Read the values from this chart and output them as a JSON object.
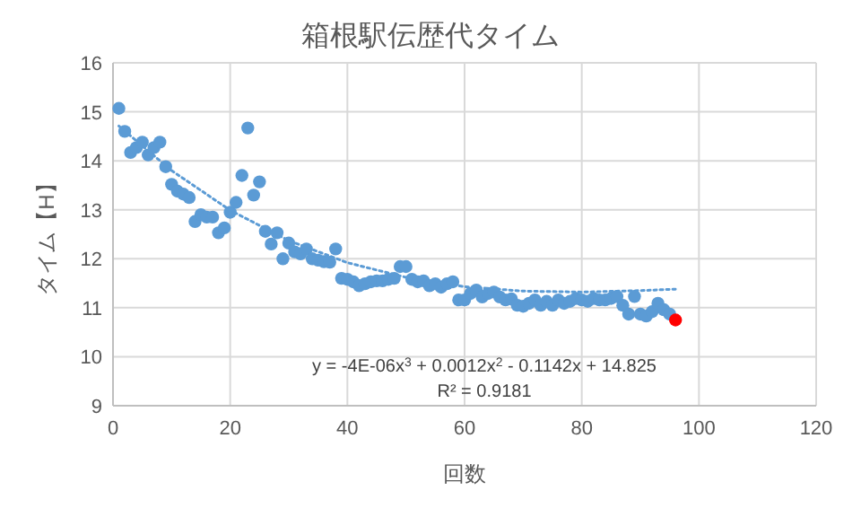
{
  "chart_data": {
    "type": "scatter",
    "title": "箱根駅伝歴代タイム",
    "xlabel": "回数",
    "ylabel": "タイム【H】",
    "xlim": [
      0,
      120
    ],
    "xticks": [
      0,
      20,
      40,
      60,
      80,
      100,
      120
    ],
    "ylim": [
      9,
      16
    ],
    "yticks": [
      9,
      10,
      11,
      12,
      13,
      14,
      15,
      16
    ],
    "grid": true,
    "marker": "circle",
    "annotations": [
      "y = -4E-06x$^{3}$ + 0.0012x$^{2}$ - 0.1142x + 14.825",
      "R² = 0.9181"
    ],
    "series": [
      {
        "color": "#5b9bd5",
        "x": [
          1,
          2,
          3,
          4,
          5,
          6,
          7,
          8,
          9,
          10,
          11,
          12,
          13,
          14,
          15,
          16,
          17,
          18,
          19,
          20,
          21,
          22,
          23,
          24,
          25,
          26,
          27,
          28,
          29,
          30,
          31,
          32,
          33,
          34,
          35,
          36,
          37,
          38,
          39,
          40,
          41,
          42,
          43,
          44,
          45,
          46,
          47,
          48,
          49,
          50,
          51,
          52,
          53,
          54,
          55,
          56,
          57,
          58,
          59,
          60,
          61,
          62,
          63,
          64,
          65,
          66,
          67,
          68,
          69,
          70,
          71,
          72,
          73,
          74,
          75,
          76,
          77,
          78,
          79,
          80,
          81,
          82,
          83,
          84,
          85,
          86,
          87,
          88,
          89,
          90,
          91,
          92,
          93,
          94,
          95
        ],
        "values": [
          15.07,
          14.6,
          14.17,
          14.27,
          14.38,
          14.12,
          14.27,
          14.38,
          13.88,
          13.52,
          13.38,
          13.32,
          13.25,
          12.76,
          12.9,
          12.85,
          12.85,
          12.53,
          12.63,
          12.95,
          13.15,
          13.7,
          14.67,
          13.3,
          13.57,
          12.56,
          12.3,
          12.53,
          12.0,
          12.32,
          12.14,
          12.1,
          12.2,
          12.0,
          11.97,
          11.94,
          11.93,
          12.2,
          11.6,
          11.58,
          11.53,
          11.45,
          11.49,
          11.53,
          11.55,
          11.55,
          11.58,
          11.6,
          11.84,
          11.84,
          11.58,
          11.53,
          11.55,
          11.45,
          11.49,
          11.42,
          11.49,
          11.53,
          11.16,
          11.16,
          11.29,
          11.36,
          11.22,
          11.29,
          11.32,
          11.22,
          11.16,
          11.18,
          11.05,
          11.03,
          11.09,
          11.16,
          11.05,
          11.13,
          11.05,
          11.16,
          11.09,
          11.13,
          11.19,
          11.16,
          11.13,
          11.19,
          11.16,
          11.16,
          11.19,
          11.23,
          11.05,
          10.87,
          11.23,
          10.87,
          10.83,
          10.92,
          11.09,
          10.96,
          10.87
        ]
      },
      {
        "color": "#ff0000",
        "x": [
          96
        ],
        "values": [
          10.75
        ]
      },
      {
        "type": "line",
        "color": "#5b9bd5",
        "line_style": "dotted",
        "marker": "none",
        "x": [
          1,
          10,
          20,
          30,
          40,
          50,
          60,
          70,
          80,
          90,
          96
        ],
        "values": [
          14.71,
          13.8,
          12.99,
          12.37,
          11.92,
          11.62,
          11.43,
          11.34,
          11.32,
          11.35,
          11.38
        ]
      }
    ]
  }
}
